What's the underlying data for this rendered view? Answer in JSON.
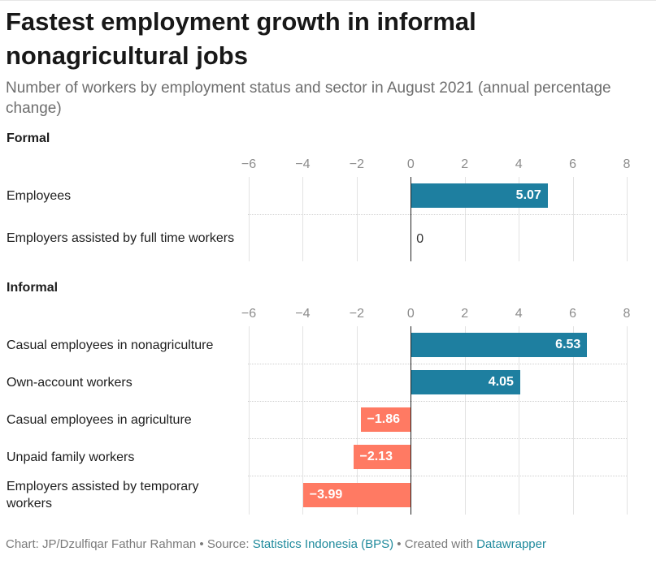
{
  "header": {
    "title": "Fastest employment growth in informal nonagricultural jobs",
    "subtitle": "Number of workers by employment status and sector in August 2021 (annual percentage change)"
  },
  "colors": {
    "positive": "#1e7fa0",
    "negative": "#ff7a63",
    "link": "#1f8a9c"
  },
  "chart_data": [
    {
      "type": "bar",
      "orientation": "horizontal",
      "title": "Formal",
      "xlim": [
        -6,
        8
      ],
      "ticks": [
        "−6",
        "−4",
        "−2",
        "0",
        "2",
        "4",
        "6",
        "8"
      ],
      "categories": [
        "Employees",
        "Employers assisted by full time workers"
      ],
      "values": [
        5.07,
        0
      ],
      "value_labels": [
        "5.07",
        "0"
      ],
      "grid": true
    },
    {
      "type": "bar",
      "orientation": "horizontal",
      "title": "Informal",
      "xlim": [
        -6,
        8
      ],
      "ticks": [
        "−6",
        "−4",
        "−2",
        "0",
        "2",
        "4",
        "6",
        "8"
      ],
      "categories": [
        "Casual employees in nonagriculture",
        "Own-account workers",
        "Casual employees in agriculture",
        "Unpaid family workers",
        "Employers assisted by temporary workers"
      ],
      "values": [
        6.53,
        4.05,
        -1.86,
        -2.13,
        -3.99
      ],
      "value_labels": [
        "6.53",
        "4.05",
        "−1.86",
        "−2.13",
        "−3.99"
      ],
      "grid": true
    }
  ],
  "footer": {
    "credit": "Chart: JP/Dzulfiqar Fathur Rahman • Source: ",
    "source": "Statistics Indonesia (BPS)",
    "created": " • Created with ",
    "tool": "Datawrapper"
  }
}
